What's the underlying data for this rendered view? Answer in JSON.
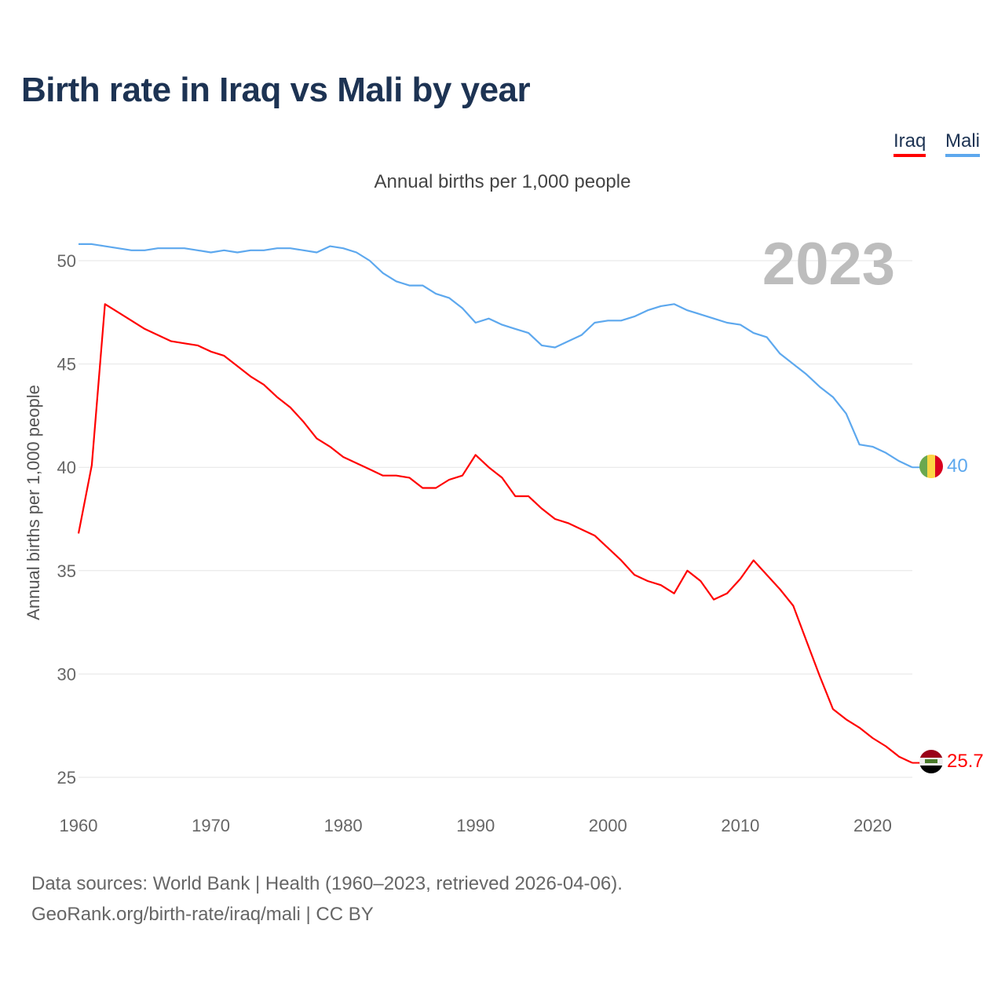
{
  "title": "Birth rate in Iraq vs Mali by year",
  "legend": [
    {
      "label": "Iraq",
      "color": "#ff0000"
    },
    {
      "label": "Mali",
      "color": "#5da8ee"
    }
  ],
  "footer": {
    "line1": "Data sources: World Bank | Health (1960–2023, retrieved 2026-04-06).",
    "line2": "GeoRank.org/birth-rate/iraq/mali | CC BY"
  },
  "chart_data": {
    "type": "line",
    "title": "Birth rate in Iraq vs Mali by year",
    "subtitle": "Annual births per 1,000 people",
    "ylabel": "Annual births per 1,000 people",
    "xlabel": "",
    "year_watermark": "2023",
    "xlim": [
      1960,
      2023
    ],
    "ylim": [
      24,
      51.5
    ],
    "xticks": [
      1960,
      1970,
      1980,
      1990,
      2000,
      2010,
      2020
    ],
    "yticks": [
      25,
      30,
      35,
      40,
      45,
      50
    ],
    "grid": true,
    "legend_position": "top-right",
    "x_start": 1960,
    "series": [
      {
        "name": "Iraq",
        "color": "#ff0000",
        "flag": "iraq-flag",
        "end_label": "25.7",
        "values": [
          36.8,
          40.1,
          47.9,
          47.5,
          47.1,
          46.7,
          46.4,
          46.1,
          46.0,
          45.9,
          45.6,
          45.4,
          44.9,
          44.4,
          44.0,
          43.4,
          42.9,
          42.2,
          41.4,
          41.0,
          40.5,
          40.2,
          39.9,
          39.6,
          39.6,
          39.5,
          39.0,
          39.0,
          39.4,
          39.6,
          40.6,
          40.0,
          39.5,
          38.6,
          38.6,
          38.0,
          37.5,
          37.3,
          37.0,
          36.7,
          36.1,
          35.5,
          34.8,
          34.5,
          34.3,
          33.9,
          35.0,
          34.5,
          33.6,
          33.9,
          34.6,
          35.5,
          34.8,
          34.1,
          33.3,
          31.6,
          29.9,
          28.3,
          27.8,
          27.4,
          26.9,
          26.5,
          26.0,
          25.7
        ]
      },
      {
        "name": "Mali",
        "color": "#5da8ee",
        "flag": "mali-flag",
        "end_label": "40",
        "values": [
          50.8,
          50.8,
          50.7,
          50.6,
          50.5,
          50.5,
          50.6,
          50.6,
          50.6,
          50.5,
          50.4,
          50.5,
          50.4,
          50.5,
          50.5,
          50.6,
          50.6,
          50.5,
          50.4,
          50.7,
          50.6,
          50.4,
          50.0,
          49.4,
          49.0,
          48.8,
          48.8,
          48.4,
          48.2,
          47.7,
          47.0,
          47.2,
          46.9,
          46.7,
          46.5,
          45.9,
          45.8,
          46.1,
          46.4,
          47.0,
          47.1,
          47.1,
          47.3,
          47.6,
          47.8,
          47.9,
          47.6,
          47.4,
          47.2,
          47.0,
          46.9,
          46.5,
          46.3,
          45.5,
          45.0,
          44.5,
          43.9,
          43.4,
          42.6,
          41.1,
          41.0,
          40.7,
          40.3,
          40.0
        ]
      }
    ]
  }
}
